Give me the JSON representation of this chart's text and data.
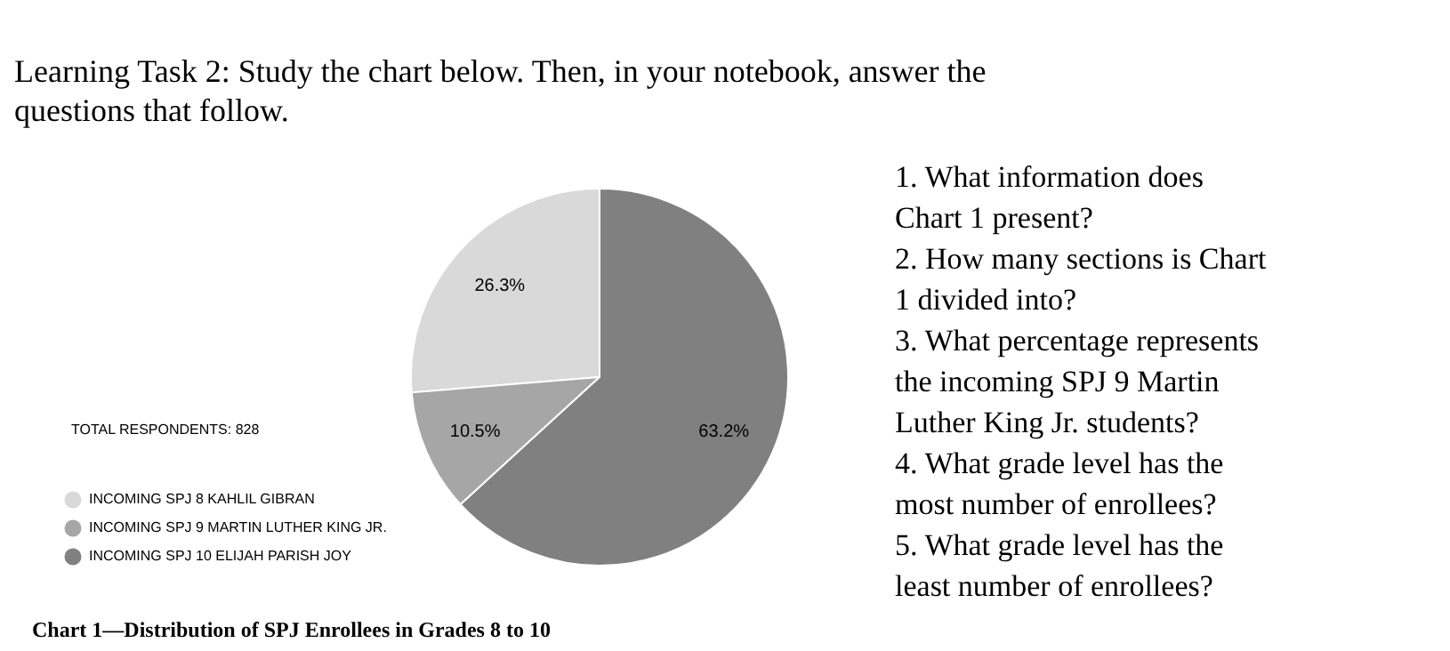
{
  "chart_data": {
    "type": "pie",
    "title": "Learning Task 2: Study the chart below. Then, in your notebook, answer the questions that follow.",
    "categories": [
      "INCOMING SPJ 8 KAHLIL GIBRAN",
      "INCOMING SPJ 9 MARTIN LUTHER KING JR.",
      "INCOMING SPJ 10 ELIJAH PARISH JOY"
    ],
    "values": [
      26.3,
      10.5,
      63.2
    ],
    "colors": [
      "#d9d9d9",
      "#a6a6a6",
      "#808080"
    ],
    "value_labels": [
      "26.3%",
      "10.5%",
      "63.2%"
    ],
    "legend": "bottom left",
    "annotations": [
      "TOTAL RESPONDENTS: 828",
      "Chart 1—Distribution of SPJ Enrollees in Grades 8 to 10",
      "1. What information does Chart 1 present?",
      "2. How many sections is Chart 1 divided into?",
      "3. What percentage represents the incoming SPJ 9 Martin Luther King Jr. students?",
      "4. What grade level has the most number of enrollees?",
      "5. What grade level has the least number of enrollees?"
    ]
  }
}
